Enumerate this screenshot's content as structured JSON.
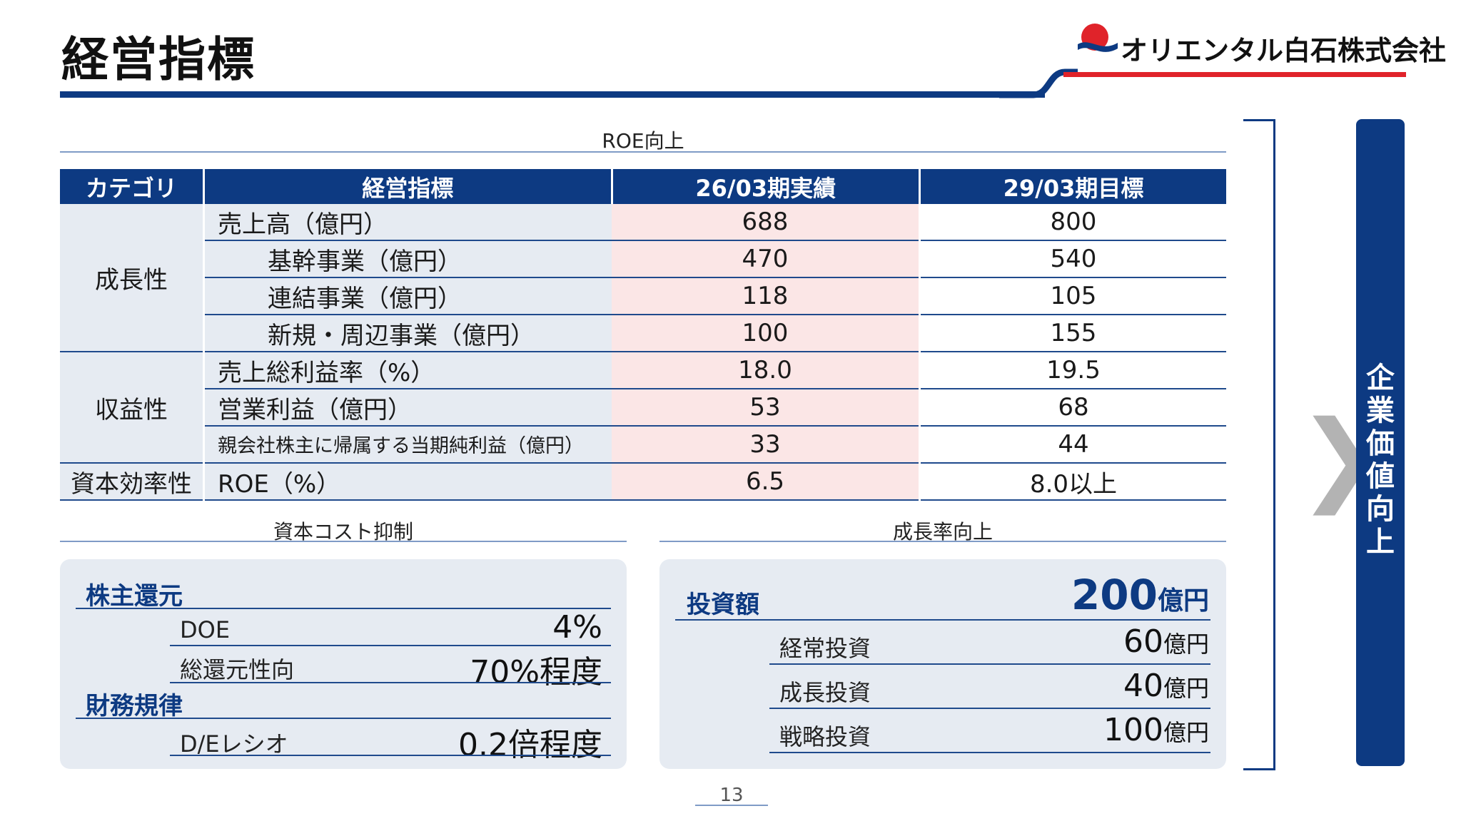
{
  "header": {
    "title": "経営指標",
    "company": "オリエンタル白石株式会社",
    "colors": {
      "brand_blue": "#0d3a82",
      "brand_red": "#e0232a"
    }
  },
  "roe_section": {
    "caption": "ROE向上"
  },
  "table": {
    "headers": [
      "カテゴリ",
      "経営指標",
      "26/03期実績",
      "29/03期目標"
    ],
    "categories": [
      "成長性",
      "収益性",
      "資本効率性"
    ],
    "rows": [
      {
        "indicator": "売上高（億円）",
        "actual": "688",
        "target": "800"
      },
      {
        "indicator": "基幹事業（億円）",
        "actual": "470",
        "target": "540"
      },
      {
        "indicator": "連結事業（億円）",
        "actual": "118",
        "target": "105"
      },
      {
        "indicator": "新規・周辺事業（億円）",
        "actual": "100",
        "target": "155"
      },
      {
        "indicator": "売上総利益率（%）",
        "actual": "18.0",
        "target": "19.5"
      },
      {
        "indicator": "営業利益（億円）",
        "actual": "53",
        "target": "68"
      },
      {
        "indicator": "親会社株主に帰属する当期純利益（億円）",
        "actual": "33",
        "target": "44"
      },
      {
        "indicator": "ROE（%）",
        "actual": "6.5",
        "target": "8.0以上"
      }
    ]
  },
  "capital_cost": {
    "caption": "資本コスト抑制",
    "shareholder_heading": "株主還元",
    "doe_label": "DOE",
    "doe_value": "4%",
    "payout_label": "総還元性向",
    "payout_value": "70%程度",
    "financial_heading": "財務規律",
    "de_label": "D/Eレシオ",
    "de_value": "0.2倍程度"
  },
  "growth": {
    "caption": "成長率向上",
    "investment_label": "投資額",
    "investment_value": "200",
    "unit": "億円",
    "items": [
      {
        "label": "経常投資",
        "value": "60"
      },
      {
        "label": "成長投資",
        "value": "40"
      },
      {
        "label": "戦略投資",
        "value": "100"
      }
    ]
  },
  "side": {
    "vertical_label": "企業価値向上",
    "chevron": "❯"
  },
  "page_number": "13"
}
